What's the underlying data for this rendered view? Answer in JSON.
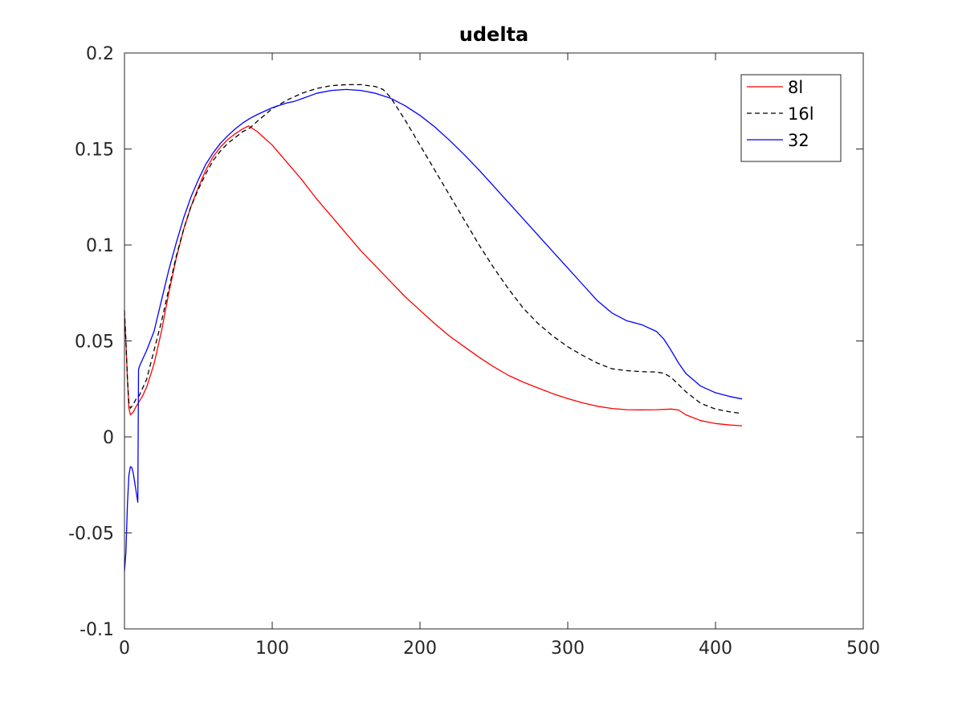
{
  "chart_data": {
    "type": "line",
    "title": "udelta",
    "xlabel": "",
    "ylabel": "",
    "xlim": [
      0,
      500
    ],
    "ylim": [
      -0.1,
      0.2
    ],
    "xticks": [
      0,
      100,
      200,
      300,
      400,
      500
    ],
    "xtick_labels": [
      "0",
      "100",
      "200",
      "300",
      "400",
      "500"
    ],
    "yticks": [
      -0.1,
      -0.05,
      0,
      0.05,
      0.1,
      0.15,
      0.2
    ],
    "ytick_labels": [
      "-0.1",
      "-0.05",
      "0",
      "0.05",
      "0.1",
      "0.15",
      "0.2"
    ],
    "grid": false,
    "legend_position": "top-right",
    "series": [
      {
        "name": "8l",
        "color": "#ff0000",
        "dash": "solid",
        "points": [
          [
            0,
            0.064
          ],
          [
            1,
            0.05
          ],
          [
            2,
            0.03
          ],
          [
            3,
            0.015
          ],
          [
            4,
            0.0115
          ],
          [
            6,
            0.013
          ],
          [
            8,
            0.016
          ],
          [
            10,
            0.0185
          ],
          [
            12,
            0.021
          ],
          [
            15,
            0.026
          ],
          [
            20,
            0.038
          ],
          [
            25,
            0.055
          ],
          [
            30,
            0.075
          ],
          [
            35,
            0.093
          ],
          [
            40,
            0.108
          ],
          [
            45,
            0.12
          ],
          [
            50,
            0.13
          ],
          [
            55,
            0.139
          ],
          [
            60,
            0.146
          ],
          [
            65,
            0.151
          ],
          [
            70,
            0.155
          ],
          [
            75,
            0.158
          ],
          [
            80,
            0.1605
          ],
          [
            84,
            0.162
          ],
          [
            90,
            0.159
          ],
          [
            100,
            0.152
          ],
          [
            110,
            0.143
          ],
          [
            120,
            0.134
          ],
          [
            130,
            0.124
          ],
          [
            140,
            0.115
          ],
          [
            150,
            0.106
          ],
          [
            160,
            0.097
          ],
          [
            170,
            0.089
          ],
          [
            180,
            0.081
          ],
          [
            190,
            0.073
          ],
          [
            200,
            0.066
          ],
          [
            210,
            0.059
          ],
          [
            220,
            0.0525
          ],
          [
            230,
            0.047
          ],
          [
            240,
            0.0415
          ],
          [
            250,
            0.0365
          ],
          [
            260,
            0.032
          ],
          [
            270,
            0.0285
          ],
          [
            280,
            0.0255
          ],
          [
            290,
            0.0225
          ],
          [
            300,
            0.02
          ],
          [
            310,
            0.0178
          ],
          [
            320,
            0.016
          ],
          [
            330,
            0.0148
          ],
          [
            340,
            0.0142
          ],
          [
            350,
            0.0141
          ],
          [
            360,
            0.0142
          ],
          [
            370,
            0.0145
          ],
          [
            375,
            0.014
          ],
          [
            380,
            0.0115
          ],
          [
            390,
            0.0085
          ],
          [
            400,
            0.007
          ],
          [
            410,
            0.0062
          ],
          [
            418,
            0.0058
          ]
        ]
      },
      {
        "name": "16l",
        "color": "#000000",
        "dash": "dashed",
        "points": [
          [
            0,
            0.066
          ],
          [
            1,
            0.05
          ],
          [
            2,
            0.03
          ],
          [
            3,
            0.018
          ],
          [
            4,
            0.015
          ],
          [
            6,
            0.017
          ],
          [
            8,
            0.02
          ],
          [
            10,
            0.0215
          ],
          [
            12,
            0.025
          ],
          [
            15,
            0.03
          ],
          [
            20,
            0.045
          ],
          [
            25,
            0.06
          ],
          [
            30,
            0.077
          ],
          [
            35,
            0.094
          ],
          [
            40,
            0.108
          ],
          [
            45,
            0.12
          ],
          [
            50,
            0.129
          ],
          [
            55,
            0.137
          ],
          [
            60,
            0.144
          ],
          [
            65,
            0.149
          ],
          [
            70,
            0.153
          ],
          [
            75,
            0.156
          ],
          [
            80,
            0.159
          ],
          [
            85,
            0.161
          ],
          [
            90,
            0.1645
          ],
          [
            100,
            0.171
          ],
          [
            110,
            0.1755
          ],
          [
            120,
            0.179
          ],
          [
            130,
            0.1815
          ],
          [
            140,
            0.183
          ],
          [
            150,
            0.1835
          ],
          [
            160,
            0.1835
          ],
          [
            170,
            0.1825
          ],
          [
            175,
            0.181
          ],
          [
            180,
            0.177
          ],
          [
            190,
            0.165
          ],
          [
            200,
            0.152
          ],
          [
            210,
            0.139
          ],
          [
            220,
            0.126
          ],
          [
            230,
            0.113
          ],
          [
            240,
            0.1
          ],
          [
            250,
            0.088
          ],
          [
            260,
            0.077
          ],
          [
            270,
            0.067
          ],
          [
            280,
            0.059
          ],
          [
            290,
            0.0525
          ],
          [
            300,
            0.047
          ],
          [
            310,
            0.0425
          ],
          [
            320,
            0.0385
          ],
          [
            330,
            0.0355
          ],
          [
            340,
            0.0345
          ],
          [
            350,
            0.034
          ],
          [
            360,
            0.0338
          ],
          [
            365,
            0.0332
          ],
          [
            370,
            0.031
          ],
          [
            380,
            0.0235
          ],
          [
            390,
            0.0175
          ],
          [
            400,
            0.0145
          ],
          [
            410,
            0.013
          ],
          [
            418,
            0.0122
          ]
        ]
      },
      {
        "name": "32",
        "color": "#0000ff",
        "dash": "solid",
        "points": [
          [
            0,
            -0.07
          ],
          [
            1,
            -0.06
          ],
          [
            2,
            -0.035
          ],
          [
            3,
            -0.02
          ],
          [
            4,
            -0.0155
          ],
          [
            5,
            -0.016
          ],
          [
            6,
            -0.019
          ],
          [
            7,
            -0.024
          ],
          [
            8,
            -0.029
          ],
          [
            9,
            -0.034
          ],
          [
            9.5,
            0.035
          ],
          [
            10,
            0.0365
          ],
          [
            12,
            0.04
          ],
          [
            15,
            0.045
          ],
          [
            20,
            0.055
          ],
          [
            25,
            0.071
          ],
          [
            30,
            0.087
          ],
          [
            35,
            0.101
          ],
          [
            40,
            0.114
          ],
          [
            45,
            0.125
          ],
          [
            50,
            0.134
          ],
          [
            55,
            0.142
          ],
          [
            60,
            0.148
          ],
          [
            65,
            0.153
          ],
          [
            70,
            0.157
          ],
          [
            75,
            0.1605
          ],
          [
            80,
            0.1635
          ],
          [
            85,
            0.166
          ],
          [
            90,
            0.168
          ],
          [
            100,
            0.1715
          ],
          [
            110,
            0.174
          ],
          [
            115,
            0.1748
          ],
          [
            120,
            0.1762
          ],
          [
            130,
            0.179
          ],
          [
            140,
            0.1805
          ],
          [
            150,
            0.181
          ],
          [
            160,
            0.1805
          ],
          [
            170,
            0.179
          ],
          [
            180,
            0.1765
          ],
          [
            190,
            0.1725
          ],
          [
            200,
            0.1675
          ],
          [
            210,
            0.1615
          ],
          [
            220,
            0.1545
          ],
          [
            230,
            0.147
          ],
          [
            240,
            0.139
          ],
          [
            250,
            0.1305
          ],
          [
            260,
            0.122
          ],
          [
            270,
            0.1135
          ],
          [
            280,
            0.105
          ],
          [
            290,
            0.0965
          ],
          [
            300,
            0.088
          ],
          [
            310,
            0.0795
          ],
          [
            320,
            0.071
          ],
          [
            330,
            0.0645
          ],
          [
            340,
            0.0605
          ],
          [
            350,
            0.0585
          ],
          [
            360,
            0.055
          ],
          [
            365,
            0.051
          ],
          [
            370,
            0.045
          ],
          [
            375,
            0.0385
          ],
          [
            380,
            0.033
          ],
          [
            390,
            0.0265
          ],
          [
            400,
            0.023
          ],
          [
            410,
            0.021
          ],
          [
            418,
            0.0198
          ]
        ]
      }
    ]
  }
}
